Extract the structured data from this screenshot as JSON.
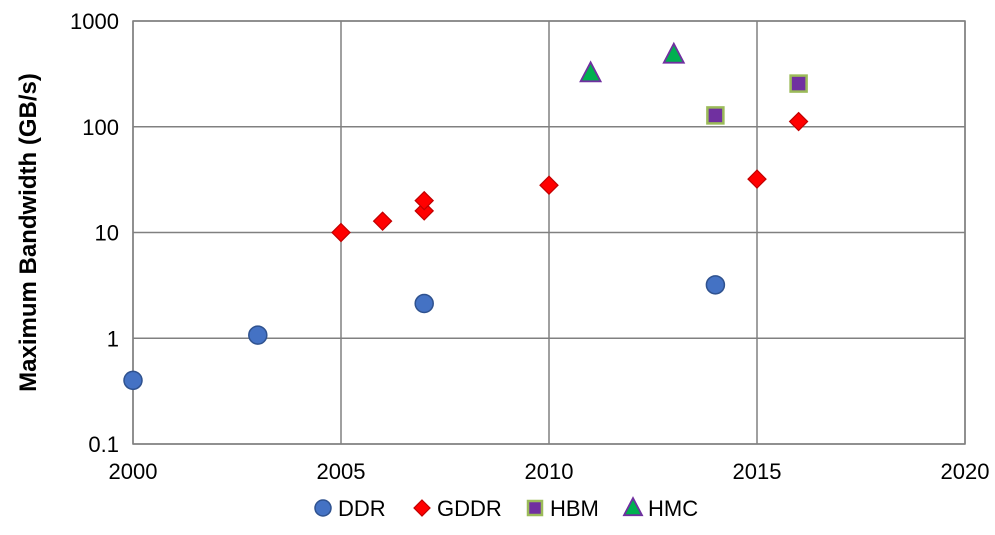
{
  "chart_data": {
    "type": "scatter",
    "title": "",
    "xlabel": "",
    "ylabel": "Maximum Bandwidth (GB/s)",
    "xlim": [
      2000,
      2020
    ],
    "ylim": [
      0.1,
      1000
    ],
    "yscale": "log",
    "grid": true,
    "legend_position": "bottom",
    "x_ticks": [
      2000,
      2005,
      2010,
      2015,
      2020
    ],
    "x_tick_labels": [
      "2000",
      "2005",
      "2010",
      "2015",
      "2020"
    ],
    "y_ticks": [
      0.1,
      1,
      10,
      100,
      1000
    ],
    "y_tick_labels": [
      "0.1",
      "1",
      "10",
      "100",
      "1000"
    ],
    "series": [
      {
        "name": "DDR",
        "marker": "circle",
        "color": "#4472C4",
        "edge_color": "#2F528F",
        "points": [
          {
            "x": 2000,
            "y": 0.4
          },
          {
            "x": 2003,
            "y": 1.07
          },
          {
            "x": 2007,
            "y": 2.13
          },
          {
            "x": 2014,
            "y": 3.2
          }
        ]
      },
      {
        "name": "GDDR",
        "marker": "diamond",
        "color": "#FF0000",
        "edge_color": "#C00000",
        "points": [
          {
            "x": 2005,
            "y": 10
          },
          {
            "x": 2006,
            "y": 12.8
          },
          {
            "x": 2007,
            "y": 16
          },
          {
            "x": 2007,
            "y": 20
          },
          {
            "x": 2010,
            "y": 28
          },
          {
            "x": 2015,
            "y": 32
          },
          {
            "x": 2016,
            "y": 112
          }
        ]
      },
      {
        "name": "HBM",
        "marker": "square",
        "color": "#7030A0",
        "edge_color": "#9BBB59",
        "points": [
          {
            "x": 2014,
            "y": 128
          },
          {
            "x": 2016,
            "y": 256
          }
        ]
      },
      {
        "name": "HMC",
        "marker": "triangle",
        "color": "#00B050",
        "edge_color": "#7030A0",
        "points": [
          {
            "x": 2011,
            "y": 320
          },
          {
            "x": 2013,
            "y": 480
          }
        ]
      }
    ]
  }
}
